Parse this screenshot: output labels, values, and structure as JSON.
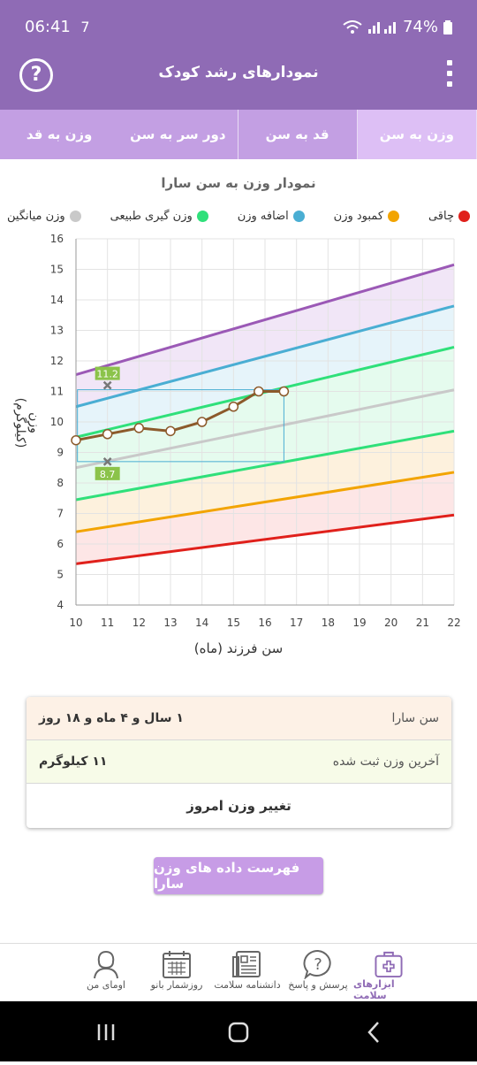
{
  "status_bar": {
    "time": "06:41",
    "notification_count": "7",
    "battery": "74%"
  },
  "header": {
    "title": "نمودارهای رشد کودک",
    "help_icon": "?"
  },
  "tabs": [
    {
      "label": "وزن به سن",
      "active": true
    },
    {
      "label": "قد به سن",
      "active": false
    },
    {
      "label": "دور سر به سن",
      "active": false
    },
    {
      "label": "وزن به قد",
      "active": false
    }
  ],
  "chart_title": "نمودار وزن به سن سارا",
  "legend": [
    {
      "label": "چاقی",
      "color": "#e0201b"
    },
    {
      "label": "کمبود وزن",
      "color": "#f2a400"
    },
    {
      "label": "اضافه وزن",
      "color": "#4aaed3"
    },
    {
      "label": "وزن گیری طبیعی",
      "color": "#2fe07a"
    },
    {
      "label": "وزن میانگین",
      "color": "#c9c9c9"
    }
  ],
  "chart_data": {
    "type": "line",
    "xlabel": "سن فرزند (ماه)",
    "ylabel": "وزن (کیلوگرم)",
    "xlim": [
      10,
      22
    ],
    "ylim": [
      4,
      16
    ],
    "x_ticks": [
      "10",
      "11",
      "12",
      "13",
      "14",
      "15",
      "16",
      "17",
      "18",
      "19",
      "20",
      "21",
      "22"
    ],
    "y_ticks": [
      "4",
      "5",
      "6",
      "7",
      "8",
      "9",
      "10",
      "11",
      "12",
      "13",
      "14",
      "15",
      "16"
    ],
    "reference_lines": [
      {
        "color": "#9b59b6",
        "x": [
          10,
          22
        ],
        "y": [
          11.55,
          15.15
        ]
      },
      {
        "color": "#4aaed3",
        "x": [
          10,
          22
        ],
        "y": [
          10.5,
          13.8
        ]
      },
      {
        "color": "#2fe07a",
        "x": [
          10,
          22
        ],
        "y": [
          9.5,
          12.45
        ]
      },
      {
        "color": "#c9c9c9",
        "x": [
          10,
          22
        ],
        "y": [
          8.5,
          11.05
        ]
      },
      {
        "color": "#2fe07a",
        "x": [
          10,
          22
        ],
        "y": [
          7.45,
          9.7
        ]
      },
      {
        "color": "#f2a400",
        "x": [
          10,
          22
        ],
        "y": [
          6.4,
          8.35
        ]
      },
      {
        "color": "#e0201b",
        "x": [
          10,
          22
        ],
        "y": [
          5.35,
          6.95
        ]
      }
    ],
    "band_fills": [
      "#efe3f6",
      "#e3f3fa",
      "#e2fbec",
      "#e2fbec",
      "#fdefd9",
      "#fde3e3"
    ],
    "series": [
      {
        "name": "سارا",
        "color": "#8c5a2b",
        "x": [
          10,
          11,
          12,
          13,
          14,
          15,
          15.8,
          16.6
        ],
        "y": [
          9.4,
          9.6,
          9.8,
          9.7,
          10.0,
          10.5,
          11.0,
          11.0
        ]
      }
    ],
    "markers": [
      {
        "x": 11,
        "y": 11.2,
        "label": "11.2"
      },
      {
        "x": 11,
        "y": 8.7,
        "label": "8.7"
      }
    ],
    "grid": true
  },
  "info": {
    "age_label": "سن سارا",
    "age_value": "۱ سال و ۴ ماه و ۱۸ روز",
    "weight_label": "آخرین وزن ثبت شده",
    "weight_value": "۱۱ کیلوگرم",
    "change_label": "تغییر وزن امروز"
  },
  "list_button": "فهرست داده های وزن سارا",
  "bottom_nav": [
    {
      "label": "ابزارهای سلامت",
      "icon": "health-kit-icon",
      "active": true
    },
    {
      "label": "پرسش و پاسخ",
      "icon": "question-bubble-icon",
      "active": false
    },
    {
      "label": "دانشنامه سلامت",
      "icon": "encyclopedia-icon",
      "active": false
    },
    {
      "label": "روزشمار بانو",
      "icon": "calendar-icon",
      "active": false
    },
    {
      "label": "اومای من",
      "icon": "user-icon",
      "active": false
    }
  ]
}
